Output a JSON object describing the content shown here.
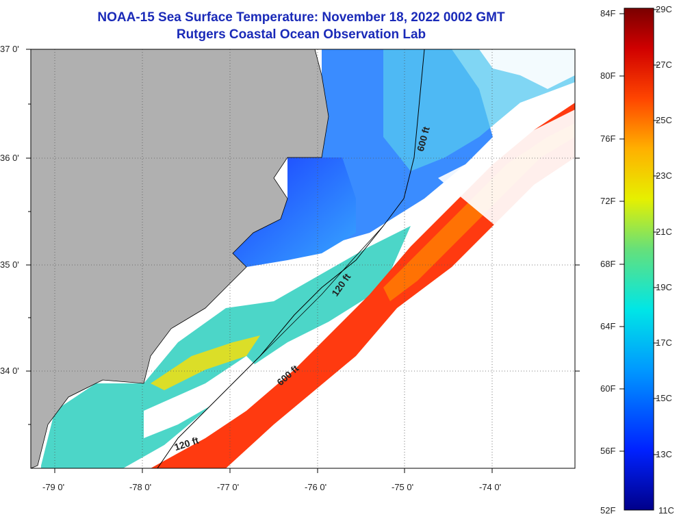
{
  "title_line1": "NOAA-15 Sea Surface Temperature:  November 18, 2022 0002 GMT",
  "title_line2": "Rutgers Coastal Ocean Observation Lab",
  "lat_labels": [
    "37 0'",
    "36 0'",
    "35 0'",
    "34 0'"
  ],
  "lon_labels": [
    "-79 0'",
    "-78 0'",
    "-77 0'",
    "-76 0'",
    "-75 0'",
    "-74 0'"
  ],
  "isobath_labels": [
    "600 ft",
    "120 ft",
    "600 ft",
    "120 ft"
  ],
  "colorbar": {
    "fahrenheit": [
      "84F",
      "80F",
      "76F",
      "72F",
      "68F",
      "64F",
      "60F",
      "56F",
      "52F"
    ],
    "celsius": [
      "29C",
      "27C",
      "25C",
      "23C",
      "21C",
      "19C",
      "17C",
      "15C",
      "13C",
      "11C"
    ]
  },
  "colors": {
    "title": "#1a2ab8",
    "land": "#b0b0b0",
    "cloud": "#ffffff"
  }
}
